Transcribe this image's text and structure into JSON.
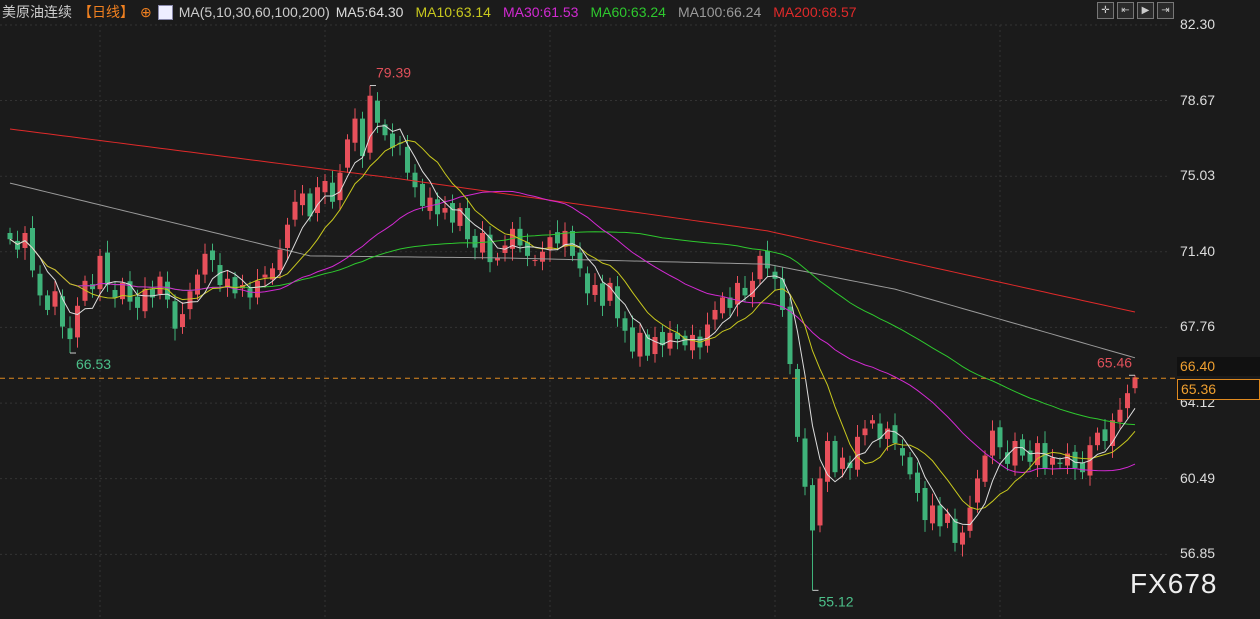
{
  "header": {
    "symbol": "美原油连续",
    "period": "【日线】",
    "ma_set": "MA(5,10,30,60,100,200)",
    "ma_labels": [
      {
        "text": "MA5:64.30",
        "color": "#dddddd"
      },
      {
        "text": "MA10:63.14",
        "color": "#c8c81e"
      },
      {
        "text": "MA30:61.53",
        "color": "#d22ad2"
      },
      {
        "text": "MA60:63.24",
        "color": "#2ec82e"
      },
      {
        "text": "MA100:66.24",
        "color": "#9a9a9a"
      },
      {
        "text": "MA200:68.57",
        "color": "#e02a2a"
      }
    ]
  },
  "toolbar": [
    "crosshair",
    "prev",
    "play",
    "exit"
  ],
  "watermark": "FX678",
  "chart_data": {
    "type": "candlestick",
    "ylim": [
      55.0,
      82.3
    ],
    "yticks": [
      "82.30",
      "78.67",
      "75.03",
      "71.40",
      "67.76",
      "64.12",
      "60.49",
      "56.85"
    ],
    "last_price": "65.36",
    "price_box": "66.40",
    "annotations": [
      {
        "text": "79.39",
        "index": 48,
        "value": 79.39,
        "color": "#e0505a"
      },
      {
        "text": "66.53",
        "index": 8,
        "value": 66.53,
        "color": "#4cc08a"
      },
      {
        "text": "55.12",
        "index": 107,
        "value": 55.12,
        "color": "#4cc08a"
      },
      {
        "text": "65.46",
        "index": 150,
        "value": 65.46,
        "color": "#e0505a"
      }
    ],
    "closes": [
      72.0,
      71.5,
      72.3,
      70.5,
      69.3,
      68.6,
      69.5,
      67.8,
      67.2,
      68.8,
      70.0,
      69.6,
      71.2,
      69.8,
      69.2,
      69.9,
      69.0,
      68.7,
      69.6,
      69.2,
      70.2,
      69.1,
      67.7,
      68.4,
      69.5,
      70.3,
      71.3,
      71.0,
      69.8,
      70.1,
      69.4,
      69.8,
      69.2,
      70.0,
      70.3,
      70.6,
      71.5,
      72.7,
      73.8,
      74.2,
      73.1,
      74.5,
      74.8,
      73.8,
      75.2,
      76.8,
      77.8,
      76.0,
      78.9,
      77.6,
      77.0,
      76.4,
      76.6,
      75.2,
      74.5,
      73.6,
      74.0,
      73.2,
      73.5,
      72.8,
      73.5,
      72.0,
      71.6,
      72.3,
      70.9,
      71.1,
      71.7,
      72.5,
      71.7,
      71.2,
      71.0,
      71.4,
      72.1,
      71.8,
      72.4,
      71.2,
      70.6,
      69.4,
      69.8,
      68.8,
      69.9,
      68.2,
      67.6,
      66.6,
      67.5,
      66.4,
      67.3,
      66.9,
      67.5,
      67.2,
      66.9,
      67.4,
      66.8,
      67.9,
      68.6,
      69.2,
      68.7,
      69.9,
      69.3,
      70.0,
      71.2,
      70.6,
      70.1,
      68.6,
      66.0,
      62.5,
      60.1,
      58.0,
      60.5,
      62.3,
      60.8,
      61.5,
      61.0,
      62.5,
      62.9,
      63.3,
      62.4,
      62.9,
      62.2,
      61.6,
      60.7,
      59.8,
      58.5,
      59.2,
      58.2,
      58.8,
      57.4,
      57.9,
      59.1,
      60.5,
      61.6,
      62.8,
      62.0,
      61.2,
      62.3,
      61.6,
      61.3,
      62.2,
      61.0,
      61.5,
      61.2,
      61.7,
      61.0,
      60.8,
      62.1,
      62.7,
      62.3,
      63.3,
      63.8,
      64.6,
      65.36
    ],
    "ma100": [
      [
        0,
        74.7
      ],
      [
        40,
        71.2
      ],
      [
        66,
        71.1
      ],
      [
        101,
        70.8
      ],
      [
        118,
        69.6
      ],
      [
        150,
        66.3
      ]
    ],
    "ma200": [
      [
        0,
        77.3
      ],
      [
        52,
        74.9
      ],
      [
        101,
        72.4
      ],
      [
        150,
        68.5
      ]
    ],
    "colors": {
      "up": "#e8505b",
      "down": "#3fb37a",
      "ma5": "#dddddd",
      "ma10": "#c8c81e",
      "ma30": "#d22ad2",
      "ma60": "#2ec82e",
      "ma100": "#9a9a9a",
      "ma200": "#e02a2a"
    }
  }
}
